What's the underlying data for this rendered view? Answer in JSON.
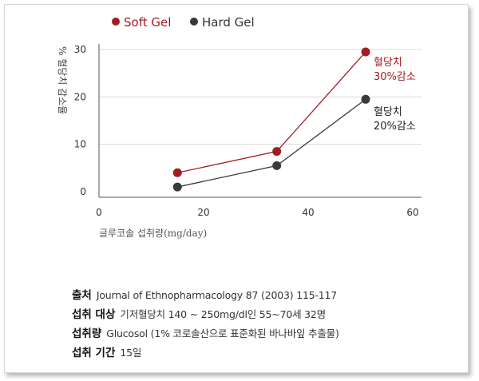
{
  "chart_data": {
    "type": "line",
    "xlabel": "글루코솔 섭취량(mg/day)",
    "ylabel": "% 혈당치 감소율",
    "xlim": [
      0,
      60
    ],
    "ylim": [
      0,
      30
    ],
    "xticks": [
      "0",
      "20",
      "40",
      "60"
    ],
    "yticks": [
      "0",
      "10",
      "20",
      "30"
    ],
    "legend_position": "top-left",
    "grid": "horizontal",
    "series": [
      {
        "name": "Soft Gel",
        "color": "#a31c22",
        "x": [
          15,
          34,
          51
        ],
        "y": [
          4,
          8.5,
          29.5
        ],
        "annotation": [
          "혈당치",
          "30%감소"
        ]
      },
      {
        "name": "Hard Gel",
        "color": "#3a3a3a",
        "x": [
          15,
          34,
          51
        ],
        "y": [
          1,
          5.5,
          19.5
        ],
        "annotation": [
          "혈당치",
          "20%감소"
        ]
      }
    ]
  },
  "info": [
    {
      "label": "출처",
      "value": "Journal of Ethnopharmacology 87 (2003) 115-117"
    },
    {
      "label": "섭취 대상",
      "value": "기저혈당치 140 ~ 250mg/dl인 55~70세 32명"
    },
    {
      "label": "섭취량",
      "value": "Glucosol (1% 코로솔산으로 표준화된 바나바잎 추출물)"
    },
    {
      "label": "섭취 기간",
      "value": "15일"
    }
  ]
}
